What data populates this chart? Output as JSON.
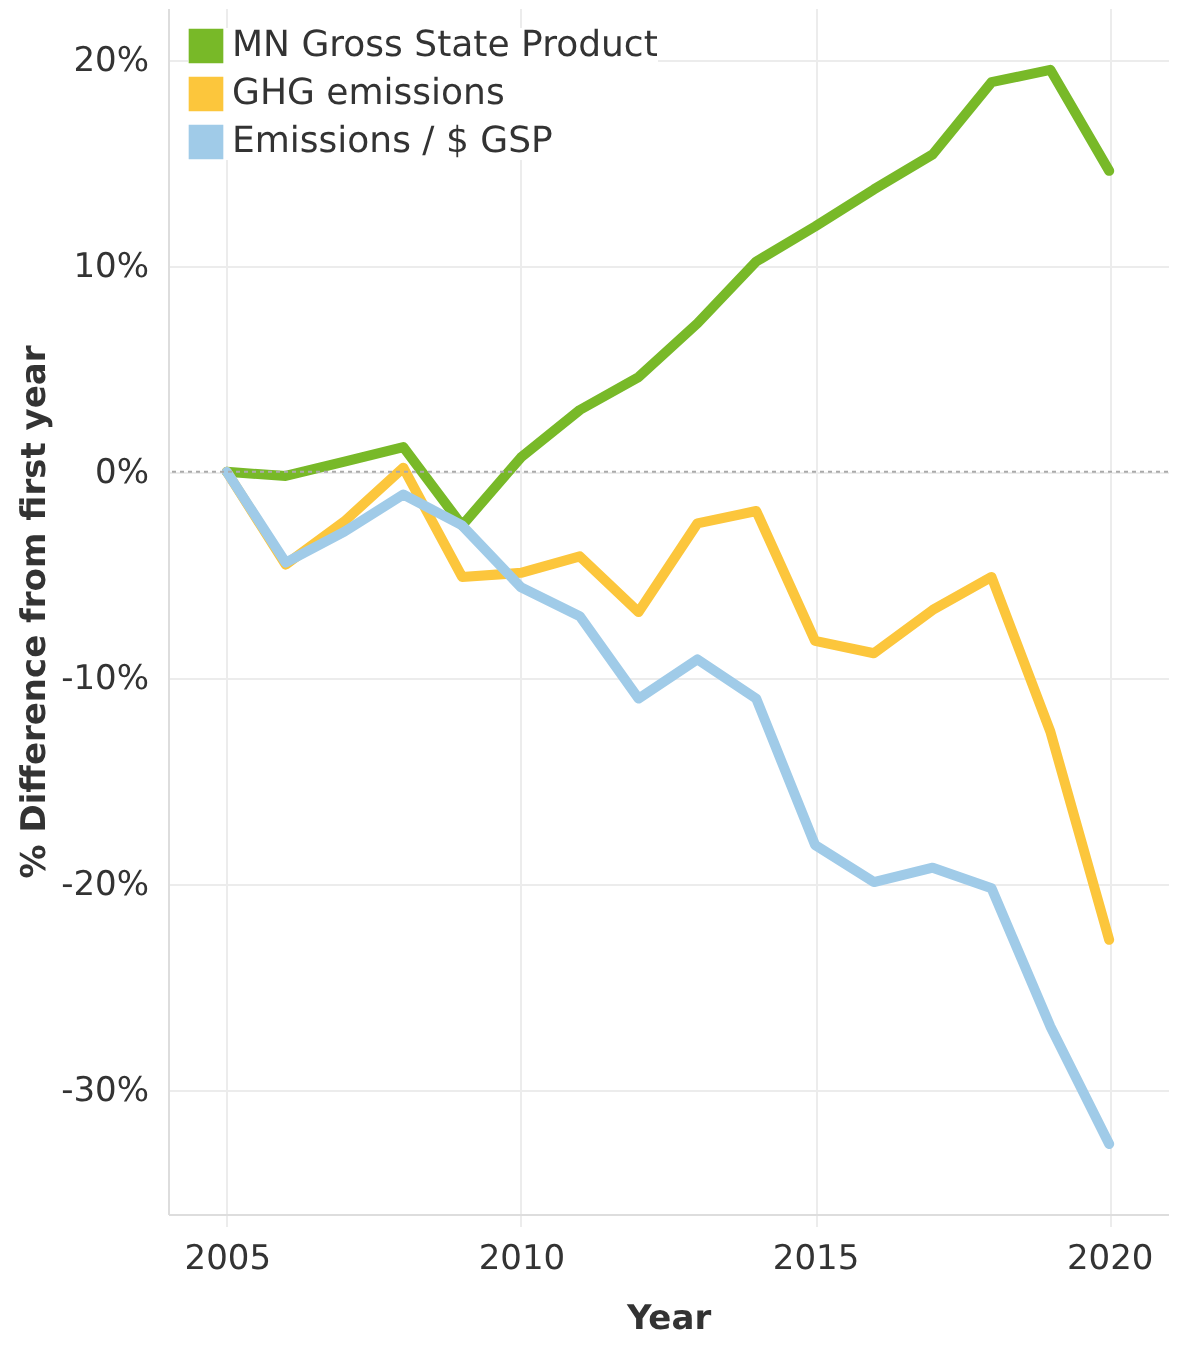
{
  "chart_data": {
    "type": "line",
    "xlabel": "Year",
    "ylabel": "% Difference from first year",
    "x": [
      2005,
      2006,
      2007,
      2008,
      2009,
      2010,
      2011,
      2012,
      2013,
      2014,
      2015,
      2016,
      2017,
      2018,
      2019,
      2020
    ],
    "series": [
      {
        "name": "MN Gross State Product",
        "color": "#78b928",
        "values": [
          0,
          -0.2,
          0.5,
          1.2,
          -2.6,
          0.7,
          3.0,
          4.6,
          7.2,
          10.2,
          11.9,
          13.7,
          15.4,
          18.9,
          19.5,
          14.6
        ]
      },
      {
        "name": "GHG emissions",
        "color": "#fcc63c",
        "values": [
          0,
          -4.5,
          -2.4,
          0.2,
          -5.1,
          -4.9,
          -4.1,
          -6.8,
          -2.5,
          -1.9,
          -8.2,
          -8.8,
          -6.7,
          -5.1,
          -12.6,
          -22.7
        ]
      },
      {
        "name": "Emissions / $ GSP",
        "color": "#a0cbe8",
        "values": [
          0,
          -4.4,
          -2.9,
          -1.1,
          -2.6,
          -5.6,
          -7.0,
          -11.0,
          -9.1,
          -11.0,
          -18.1,
          -19.9,
          -19.2,
          -20.2,
          -26.9,
          -32.6
        ]
      }
    ],
    "xlim": [
      2004,
      2021
    ],
    "xticks": [
      2005,
      2010,
      2015,
      2020
    ],
    "ylim": [
      -36,
      22.5
    ],
    "yticks": [
      {
        "value": -30,
        "label": "-30%"
      },
      {
        "value": -20,
        "label": "-20%"
      },
      {
        "value": -10,
        "label": "-10%"
      },
      {
        "value": 0,
        "label": "0%"
      },
      {
        "value": 10,
        "label": "10%"
      },
      {
        "value": 20,
        "label": "20%"
      }
    ],
    "ref_lines": [
      {
        "axis": "y",
        "value": 0,
        "color": "#aaaaaa",
        "line_style": "dotted"
      }
    ],
    "grid": true,
    "legend": "top left",
    "marker": "none",
    "line_style": "solid"
  }
}
